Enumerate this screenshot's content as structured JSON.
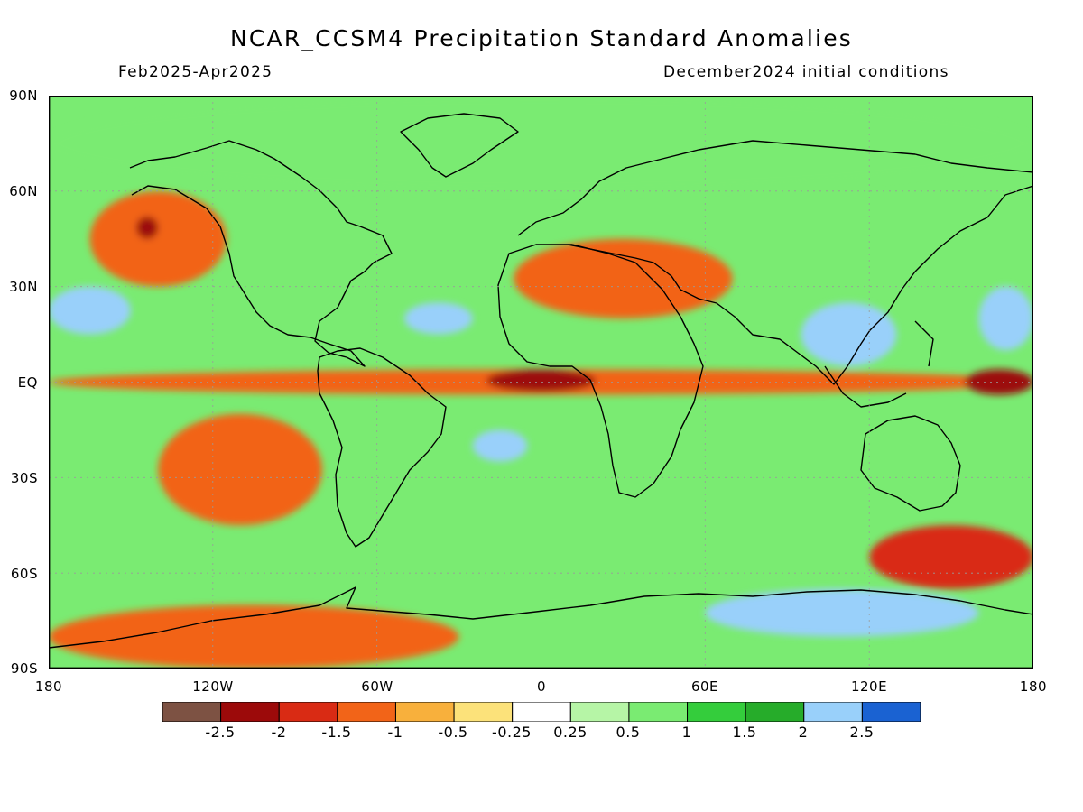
{
  "title": "NCAR_CCSM4 Precipitation Standard Anomalies",
  "period": "Feb2025-Apr2025",
  "init": "December2024 initial conditions",
  "lat_labels": [
    "90N",
    "60N",
    "30N",
    "EQ",
    "30S",
    "60S",
    "90S"
  ],
  "lon_labels": [
    "180",
    "120W",
    "60W",
    "0",
    "60E",
    "120E",
    "180"
  ],
  "colorbar": {
    "colors": [
      "#7d5243",
      "#9c0a0a",
      "#d92b14",
      "#f26418",
      "#f8b03c",
      "#fce27a",
      "#ffffff",
      "#b6f5a6",
      "#7aeb72",
      "#34cd3c",
      "#26ac2a",
      "#99d0fa",
      "#1a62d2"
    ],
    "labels": [
      "-2.5",
      "-2",
      "-1.5",
      "-1",
      "-0.5",
      "-0.25",
      "0.25",
      "0.5",
      "1",
      "1.5",
      "2",
      "2.5"
    ]
  },
  "colors": {
    "green_light": "#b6f5a6",
    "green": "#7aeb72",
    "green_mid": "#34cd3c",
    "green_dark": "#26ac2a",
    "blue_light": "#99d0fa",
    "blue": "#1a62d2",
    "yellow": "#fce27a",
    "orange_light": "#f8b03c",
    "orange": "#f26418",
    "red": "#d92b14",
    "red_dark": "#9c0a0a",
    "brown": "#7d5243"
  },
  "chart_data": {
    "type": "heatmap",
    "variable": "Precipitation Standard Anomalies",
    "levels": [
      -2.5,
      -2,
      -1.5,
      -1,
      -0.5,
      -0.25,
      0.25,
      0.5,
      1,
      1.5,
      2,
      2.5
    ],
    "xlim": [
      -180,
      180
    ],
    "ylim": [
      -90,
      90
    ],
    "regions": [
      {
        "lon": [
          -180,
          180
        ],
        "lat": [
          -4,
          4
        ],
        "value": -1.2
      },
      {
        "lon": [
          -20,
          20
        ],
        "lat": [
          -3,
          4
        ],
        "value": -2.2
      },
      {
        "lon": [
          -165,
          -115
        ],
        "lat": [
          30,
          60
        ],
        "value": -1.2
      },
      {
        "lon": [
          -148,
          -140
        ],
        "lat": [
          45,
          52
        ],
        "value": -2.0
      },
      {
        "lon": [
          -180,
          -150
        ],
        "lat": [
          15,
          30
        ],
        "value": 2.2
      },
      {
        "lon": [
          -50,
          -25
        ],
        "lat": [
          15,
          25
        ],
        "value": 2.2
      },
      {
        "lon": [
          95,
          130
        ],
        "lat": [
          5,
          25
        ],
        "value": 2.2
      },
      {
        "lon": [
          160,
          180
        ],
        "lat": [
          10,
          30
        ],
        "value": 2.2
      },
      {
        "lon": [
          -10,
          70
        ],
        "lat": [
          20,
          45
        ],
        "value": -1.2
      },
      {
        "lon": [
          155,
          180
        ],
        "lat": [
          -4,
          4
        ],
        "value": -2.1
      },
      {
        "lon": [
          -25,
          -5
        ],
        "lat": [
          -25,
          -15
        ],
        "value": 2.2
      },
      {
        "lon": [
          60,
          160
        ],
        "lat": [
          -80,
          -65
        ],
        "value": 2.1
      },
      {
        "lon": [
          -180,
          -30
        ],
        "lat": [
          -90,
          -70
        ],
        "value": -1.0
      },
      {
        "lon": [
          120,
          180
        ],
        "lat": [
          -65,
          -45
        ],
        "value": -1.5
      },
      {
        "lon": [
          -140,
          -80
        ],
        "lat": [
          -45,
          -10
        ],
        "value": -1.2
      },
      {
        "lon": [
          -180,
          180
        ],
        "lat": [
          60,
          90
        ],
        "value": 0.8
      }
    ]
  }
}
